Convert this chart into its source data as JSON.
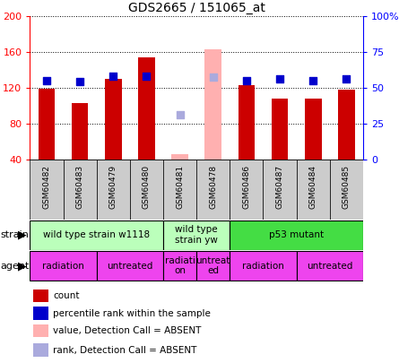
{
  "title": "GDS2665 / 151065_at",
  "samples": [
    "GSM60482",
    "GSM60483",
    "GSM60479",
    "GSM60480",
    "GSM60481",
    "GSM60478",
    "GSM60486",
    "GSM60487",
    "GSM60484",
    "GSM60485"
  ],
  "count_values": [
    119,
    103,
    130,
    154,
    null,
    null,
    123,
    108,
    108,
    118
  ],
  "count_absent": [
    null,
    null,
    null,
    null,
    46,
    163,
    null,
    null,
    null,
    null
  ],
  "rank_values": [
    128,
    127,
    133,
    133,
    null,
    null,
    128,
    130,
    128,
    130
  ],
  "rank_absent": [
    null,
    null,
    null,
    null,
    90,
    132,
    null,
    null,
    null,
    null
  ],
  "ylim_left": [
    40,
    200
  ],
  "ylim_right": [
    0,
    100
  ],
  "left_ticks": [
    40,
    80,
    120,
    160,
    200
  ],
  "right_ticks": [
    0,
    25,
    50,
    75,
    100
  ],
  "right_tick_labels": [
    "0",
    "25",
    "50",
    "75",
    "100%"
  ],
  "bar_color": "#cc0000",
  "bar_absent_color": "#ffb0b0",
  "dot_color": "#0000cc",
  "dot_absent_color": "#aaaadd",
  "strain_groups": [
    {
      "label": "wild type strain w1118",
      "start": 0,
      "end": 3,
      "color": "#bbffbb"
    },
    {
      "label": "wild type\nstrain yw",
      "start": 4,
      "end": 5,
      "color": "#bbffbb"
    },
    {
      "label": "p53 mutant",
      "start": 6,
      "end": 9,
      "color": "#44dd44"
    }
  ],
  "agent_groups": [
    {
      "label": "radiation",
      "start": 0,
      "end": 1,
      "color": "#ee44ee"
    },
    {
      "label": "untreated",
      "start": 2,
      "end": 3,
      "color": "#ee44ee"
    },
    {
      "label": "radiati\non",
      "start": 4,
      "end": 4,
      "color": "#ee44ee"
    },
    {
      "label": "untreat\ned",
      "start": 5,
      "end": 5,
      "color": "#ee44ee"
    },
    {
      "label": "radiation",
      "start": 6,
      "end": 7,
      "color": "#ee44ee"
    },
    {
      "label": "untreated",
      "start": 8,
      "end": 9,
      "color": "#ee44ee"
    }
  ],
  "legend_items": [
    {
      "label": "count",
      "color": "#cc0000"
    },
    {
      "label": "percentile rank within the sample",
      "color": "#0000cc"
    },
    {
      "label": "value, Detection Call = ABSENT",
      "color": "#ffb0b0"
    },
    {
      "label": "rank, Detection Call = ABSENT",
      "color": "#aaaadd"
    }
  ]
}
